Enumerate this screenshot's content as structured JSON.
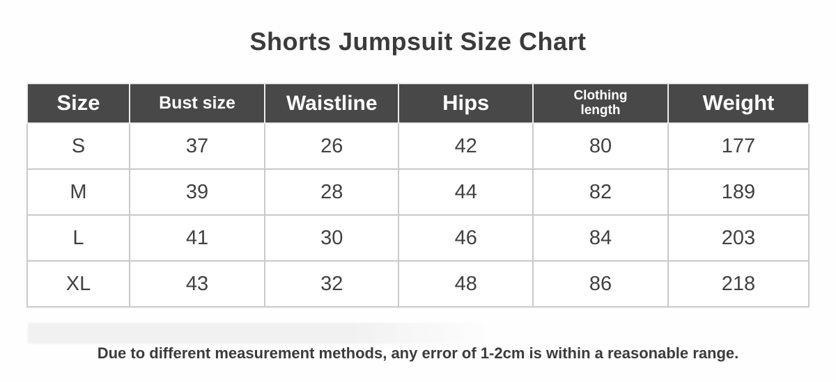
{
  "page": {
    "title": "Shorts Jumpsuit Size Chart",
    "note": "Due to different measurement methods, any error of 1-2cm is within a reasonable range."
  },
  "colors": {
    "header_bg": "#484848",
    "header_text": "#ffffff",
    "body_text": "#414141",
    "title_color": "#3b3b3b",
    "border": "#c9c9c9",
    "header_border": "#ebebeb",
    "watermark": "#f1f1f1",
    "page_bg": "#fefefe"
  },
  "chart_data": {
    "type": "table",
    "title": "Shorts Jumpsuit Size Chart",
    "columns": [
      "Size",
      "Bust size",
      "Waistline",
      "Hips",
      "Clothing length",
      "Weight"
    ],
    "rows": [
      [
        "S",
        "37",
        "26",
        "42",
        "80",
        "177"
      ],
      [
        "M",
        "39",
        "28",
        "44",
        "82",
        "189"
      ],
      [
        "L",
        "41",
        "30",
        "46",
        "84",
        "203"
      ],
      [
        "XL",
        "43",
        "32",
        "48",
        "86",
        "218"
      ]
    ],
    "footnote": "Due to different measurement methods, any error of 1-2cm is within a reasonable range."
  }
}
